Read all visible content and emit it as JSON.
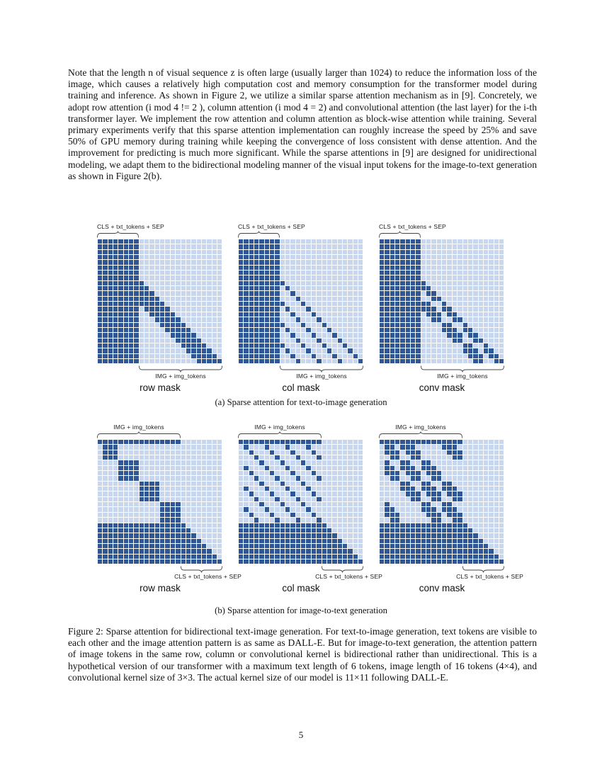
{
  "page": {
    "paragraph": "Note that the length n of visual sequence z is often large (usually larger than 1024) to reduce the information loss of the image, which causes a relatively high computation cost and memory consumption for the transformer model during training and inference. As shown in Figure 2, we utilize a similar sparse attention mechanism as in [9]. Concretely, we adopt row attention (i mod 4 != 2 ), column attention (i mod 4 = 2) and convolutional attention (the last layer) for the i-th transformer layer. We implement the row attention and column attention as block-wise attention while training. Several primary experiments verify that this sparse attention implementation can roughly increase the speed by 25% and save 50% of GPU memory during training while keeping the convergence of loss consistent with dense attention. And the improvement for predicting is much more significant. While the sparse attentions in [9] are designed for unidirectional modeling, we adapt them to the bidirectional modeling manner of the visual input tokens for the image-to-text generation as shown in Figure 2(b).",
    "caption_a": "(a) Sparse attention for text-to-image generation",
    "caption_b": "(b) Sparse attention for image-to-text generation",
    "figure_caption": "Figure 2: Sparse attention for bidirectional text-image generation. For text-to-image generation, text tokens are visible to each other and the image attention pattern is as same as DALL-E. But for image-to-text generation, the attention pattern of image tokens in the same row, column or convolutional kernel is bidirectional rather than unidirectional. This is a hypothetical version of our transformer with a maximum text length of 6 tokens, image length of 16 tokens (4×4), and convolutional kernel size of 3×3. The actual kernel size of our model is 11×11 following DALL-E.",
    "page_number": "5"
  },
  "labels": {
    "text_tokens": "CLS + txt_tokens + SEP",
    "image_tokens": "IMG + img_tokens"
  },
  "colors": {
    "dark_cell": "#2f5795",
    "light_cell": "#c8d6ee",
    "brace": "#444444"
  },
  "figure_a": {
    "variant": "a",
    "panels": [
      {
        "id": "row-mask-a",
        "name": "row mask",
        "mask": "a_row"
      },
      {
        "id": "col-mask-a",
        "name": "col mask",
        "mask": "a_col"
      },
      {
        "id": "conv-mask-a",
        "name": "conv mask",
        "mask": "a_conv"
      }
    ]
  },
  "figure_b": {
    "variant": "b",
    "panels": [
      {
        "id": "row-mask-b",
        "name": "row mask",
        "mask": "b_row"
      },
      {
        "id": "col-mask-b",
        "name": "col mask",
        "mask": "b_col"
      },
      {
        "id": "conv-mask-b",
        "name": "conv mask",
        "mask": "b_conv"
      }
    ]
  },
  "masks": {
    "a_row": [
      "111111110000000000000000",
      "111111110000000000000000",
      "111111110000000000000000",
      "111111110000000000000000",
      "111111110000000000000000",
      "111111110000000000000000",
      "111111110000000000000000",
      "111111110000000000000000",
      "111111111000000000000000",
      "111111111100000000000000",
      "111111111110000000000000",
      "111111111111000000000000",
      "111111111111100000000000",
      "111111110111110000000000",
      "111111110011111000000000",
      "111111110001111100000000",
      "111111110000111110000000",
      "111111110000011111000000",
      "111111110000001111100000",
      "111111110000000111110000",
      "111111110000000011111000",
      "111111110000000001111100",
      "111111110000000000111110",
      "111111110000000000011111"
    ],
    "a_col": [
      "111111110000000000000000",
      "111111110000000000000000",
      "111111110000000000000000",
      "111111110000000000000000",
      "111111110000000000000000",
      "111111110000000000000000",
      "111111110000000000000000",
      "111111110000000000000000",
      "111111111000000000000000",
      "111111110100000000000000",
      "111111110010000000000000",
      "111111110001000000000000",
      "111111111000100000000000",
      "111111110100010000000000",
      "111111110010001000000000",
      "111111110001000100000000",
      "111111111000100010000000",
      "111111110100010001000000",
      "111111110010001000100000",
      "111111110001000100010000",
      "111111111000100010001000",
      "111111110100010001000100",
      "111111110010001000100010",
      "111111110001000100010001"
    ],
    "a_conv": [
      "111111110000000000000000",
      "111111110000000000000000",
      "111111110000000000000000",
      "111111110000000000000000",
      "111111110000000000000000",
      "111111110000000000000000",
      "111111110000000000000000",
      "111111110000000000000000",
      "111111111000000000000000",
      "111111111100000000000000",
      "111111110110000000000000",
      "111111110011000000000000",
      "111111111100100000000000",
      "111111111110110000000000",
      "111111110111011000000000",
      "111111110011001100000000",
      "111111110000110010000000",
      "111111110000111011000000",
      "111111110000011101100000",
      "111111110000001100110000",
      "111111110000000011001000",
      "111111110000000011101100",
      "111111110000000001110110",
      "111111110000000000110011"
    ],
    "b_row": [
      "111111111111111100000000",
      "011100000000000000000000",
      "011100000000000000000000",
      "011100000000000000000000",
      "000011110000000000000000",
      "000011110000000000000000",
      "000011110000000000000000",
      "000011110000000000000000",
      "000000001111000000000000",
      "000000001111000000000000",
      "000000001111000000000000",
      "000000001111000000000000",
      "000000000000111100000000",
      "000000000000111100000000",
      "000000000000111100000000",
      "000000000000111100000000",
      "111111111111111110000000",
      "111111111111111111000000",
      "111111111111111111100000",
      "111111111111111111110000",
      "111111111111111111111000",
      "111111111111111111111100",
      "111111111111111111111110",
      "111111111111111111111111"
    ],
    "b_col": [
      "111111111111111100000000",
      "010001000100010000000000",
      "001000100010001000000000",
      "000100010001000100000000",
      "000010001000100000000000",
      "010001000100010000000000",
      "001000100010001000000000",
      "000100010001000100000000",
      "000010001000100000000000",
      "010001000100010000000000",
      "001000100010001000000000",
      "000100010001000100000000",
      "000010001000100000000000",
      "010001000100010000000000",
      "001000100010001000000000",
      "000100010001000100000000",
      "111111111111111110000000",
      "111111111111111111000000",
      "111111111111111111100000",
      "111111111111111111110000",
      "111111111111111111111000",
      "111111111111111111111100",
      "111111111111111111111110",
      "111111111111111111111111"
    ],
    "b_conv": [
      "111111111111111100000000",
      "011011100000111000000000",
      "011101110000011100000000",
      "001100110000001100000000",
      "010011001100000000000000",
      "011011101110000000000000",
      "011101110111000000000000",
      "001100110011000000000000",
      "000011001100110000000000",
      "000011101110111000000000",
      "000001110111011100000000",
      "000000110011001100000000",
      "010000001100110000000000",
      "011000001110111000000000",
      "011100000111011100000000",
      "001100000011001100000000",
      "111111111111111110000000",
      "111111111111111111000000",
      "111111111111111111100000",
      "111111111111111111110000",
      "111111111111111111111000",
      "111111111111111111111100",
      "111111111111111111111110",
      "111111111111111111111111"
    ]
  }
}
